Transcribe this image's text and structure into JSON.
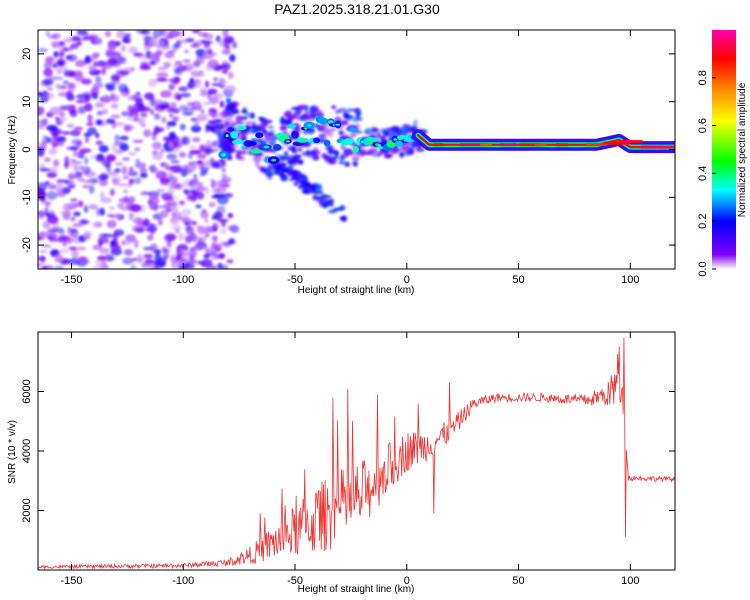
{
  "title": "PAZ1.2025.318.21.01.G30",
  "chart_data": [
    {
      "type": "heatmap",
      "name": "spectrogram",
      "xlabel": "Height of straight line (km)",
      "ylabel": "Frequency (Hz)",
      "xlim": [
        -165,
        120
      ],
      "ylim": [
        -25,
        25
      ],
      "xticks": [
        -150,
        -100,
        -50,
        0,
        50,
        100
      ],
      "yticks": [
        -20,
        -10,
        0,
        10,
        20
      ],
      "colorbar": {
        "label": "Normalized spectral amplitude",
        "range": [
          0,
          1
        ],
        "ticks": [
          0.0,
          0.2,
          0.4,
          0.6,
          0.8
        ],
        "colormap": [
          "#ffffff",
          "#8000ff",
          "#0000ff",
          "#00ffff",
          "#00ff00",
          "#ffff00",
          "#ff8000",
          "#ff0000",
          "#ff00aa"
        ]
      },
      "features": {
        "noise_region_km": [
          -165,
          -80
        ],
        "noise_freq_hz": [
          -25,
          25
        ],
        "tone_trace": [
          {
            "x": -80,
            "y": 5
          },
          {
            "x": -70,
            "y": 2
          },
          {
            "x": -60,
            "y": 0
          },
          {
            "x": -50,
            "y": 3
          },
          {
            "x": -40,
            "y": 4
          },
          {
            "x": -30,
            "y": 3
          },
          {
            "x": -20,
            "y": 2
          },
          {
            "x": -10,
            "y": 1
          },
          {
            "x": 0,
            "y": 2
          },
          {
            "x": 5,
            "y": 3
          },
          {
            "x": 10,
            "y": 1
          },
          {
            "x": 50,
            "y": 1
          },
          {
            "x": 85,
            "y": 1
          },
          {
            "x": 95,
            "y": 2
          },
          {
            "x": 100,
            "y": 0.5
          },
          {
            "x": 120,
            "y": 0.5
          }
        ],
        "lower_branch": [
          {
            "x": -60,
            "y": -3
          },
          {
            "x": -50,
            "y": -6
          },
          {
            "x": -40,
            "y": -9
          },
          {
            "x": -28,
            "y": -14
          }
        ]
      }
    },
    {
      "type": "line",
      "name": "snr",
      "color": "#ee3333",
      "xlabel": "Height of straight line (km)",
      "ylabel": "SNR (10 * v/v)",
      "xlim": [
        -165,
        120
      ],
      "ylim": [
        0,
        8000
      ],
      "xticks": [
        -150,
        -100,
        -50,
        0,
        50,
        100
      ],
      "yticks": [
        2000,
        4000,
        6000
      ],
      "envelope": [
        {
          "x": -165,
          "y": 100,
          "noise": 50
        },
        {
          "x": -100,
          "y": 150,
          "noise": 80
        },
        {
          "x": -80,
          "y": 250,
          "noise": 120
        },
        {
          "x": -70,
          "y": 500,
          "noise": 300
        },
        {
          "x": -60,
          "y": 900,
          "noise": 600
        },
        {
          "x": -50,
          "y": 1300,
          "noise": 900
        },
        {
          "x": -40,
          "y": 1700,
          "noise": 1200
        },
        {
          "x": -30,
          "y": 2100,
          "noise": 1300
        },
        {
          "x": -20,
          "y": 2500,
          "noise": 1200
        },
        {
          "x": -10,
          "y": 3300,
          "noise": 900
        },
        {
          "x": 0,
          "y": 4000,
          "noise": 700
        },
        {
          "x": 10,
          "y": 4200,
          "noise": 500
        },
        {
          "x": 20,
          "y": 4700,
          "noise": 400
        },
        {
          "x": 30,
          "y": 5600,
          "noise": 200
        },
        {
          "x": 40,
          "y": 5800,
          "noise": 150
        },
        {
          "x": 60,
          "y": 5800,
          "noise": 150
        },
        {
          "x": 80,
          "y": 5700,
          "noise": 200
        },
        {
          "x": 90,
          "y": 5900,
          "noise": 400
        },
        {
          "x": 97,
          "y": 6500,
          "noise": 1500
        },
        {
          "x": 99,
          "y": 3100,
          "noise": 100
        },
        {
          "x": 120,
          "y": 3050,
          "noise": 80
        }
      ],
      "spikes": [
        {
          "x": -33,
          "y": 5800
        },
        {
          "x": -13,
          "y": 5900
        },
        {
          "x": 5,
          "y": 5600
        },
        {
          "x": 19,
          "y": 6300
        },
        {
          "x": 12,
          "y": 1900
        },
        {
          "x": 97,
          "y": 7800
        },
        {
          "x": 98,
          "y": 1100
        },
        {
          "x": 95,
          "y": 7500
        }
      ]
    }
  ]
}
